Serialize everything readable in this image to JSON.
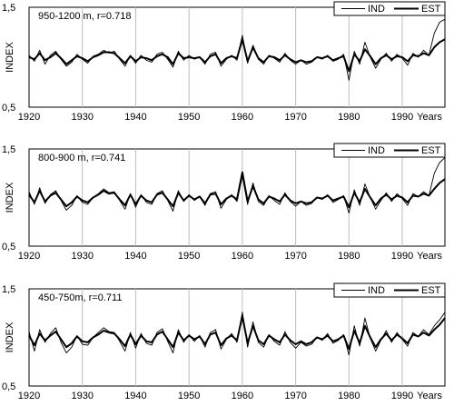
{
  "colors": {
    "ind": "#000000",
    "est": "#000000",
    "grid": "#bdbdbd",
    "axis": "#000000"
  },
  "chart_data": [
    {
      "type": "line",
      "title": "950-1200 m,  r=0.718",
      "ylabel": "INDEX",
      "xlabel": "Years",
      "xlim": [
        1920,
        1998
      ],
      "ylim": [
        0.5,
        1.5
      ],
      "y_ticks": [
        "0,5",
        "1,5"
      ],
      "x_ticks": [
        1920,
        1930,
        1940,
        1950,
        1960,
        1970,
        1980,
        1990
      ],
      "legend": [
        "IND",
        "EST"
      ],
      "legend_position": "top-right",
      "grid": "vertical",
      "x": [
        1920,
        1921,
        1922,
        1923,
        1924,
        1925,
        1926,
        1927,
        1928,
        1929,
        1930,
        1931,
        1932,
        1933,
        1934,
        1935,
        1936,
        1937,
        1938,
        1939,
        1940,
        1941,
        1942,
        1943,
        1944,
        1945,
        1946,
        1947,
        1948,
        1949,
        1950,
        1951,
        1952,
        1953,
        1954,
        1955,
        1956,
        1957,
        1958,
        1959,
        1960,
        1961,
        1962,
        1963,
        1964,
        1965,
        1966,
        1967,
        1968,
        1969,
        1970,
        1971,
        1972,
        1973,
        1974,
        1975,
        1976,
        1977,
        1978,
        1979,
        1980,
        1981,
        1982,
        1983,
        1984,
        1985,
        1986,
        1987,
        1988,
        1989,
        1990,
        1991,
        1992,
        1993,
        1994,
        1995,
        1996,
        1997,
        1998
      ],
      "series": [
        {
          "name": "IND",
          "values": [
            1.02,
            0.96,
            1.07,
            0.93,
            1.02,
            1.06,
            0.98,
            0.91,
            0.95,
            1.03,
            0.98,
            0.94,
            1.01,
            1.03,
            1.07,
            1.04,
            1.06,
            0.98,
            0.91,
            1.02,
            0.94,
            1.02,
            0.97,
            0.95,
            1.03,
            1.05,
            0.98,
            0.9,
            1.06,
            0.97,
            1.02,
            0.98,
            1.0,
            0.93,
            1.03,
            1.05,
            0.91,
            0.98,
            1.02,
            0.97,
            1.22,
            0.94,
            1.12,
            0.98,
            0.93,
            1.02,
            0.99,
            0.95,
            1.04,
            0.97,
            0.93,
            0.97,
            0.93,
            0.95,
            1.0,
            0.98,
            1.02,
            0.96,
            0.98,
            1.03,
            0.77,
            1.06,
            0.93,
            1.15,
            1.0,
            0.89,
            0.98,
            1.04,
            0.96,
            1.03,
            0.99,
            0.92,
            1.04,
            1.0,
            1.07,
            1.02,
            1.24,
            1.35,
            1.38
          ]
        },
        {
          "name": "EST",
          "values": [
            1.0,
            0.98,
            1.04,
            0.97,
            1.0,
            1.04,
            0.99,
            0.93,
            0.97,
            1.01,
            0.99,
            0.96,
            1.0,
            1.02,
            1.05,
            1.05,
            1.04,
            0.99,
            0.94,
            1.01,
            0.96,
            1.0,
            0.99,
            0.97,
            1.01,
            1.03,
            1.0,
            0.93,
            1.04,
            0.99,
            1.0,
            0.99,
            1.0,
            0.95,
            1.01,
            1.03,
            0.94,
            0.99,
            1.01,
            0.99,
            1.18,
            0.96,
            1.1,
            0.99,
            0.95,
            1.01,
            1.0,
            0.97,
            1.02,
            0.98,
            0.95,
            0.97,
            0.95,
            0.96,
            1.0,
            0.99,
            1.01,
            0.97,
            0.99,
            1.01,
            0.86,
            1.03,
            0.96,
            1.08,
            1.01,
            0.93,
            0.99,
            1.02,
            0.98,
            1.01,
            1.0,
            0.96,
            1.02,
            1.01,
            1.04,
            1.02,
            1.1,
            1.15,
            1.18
          ]
        }
      ]
    },
    {
      "type": "line",
      "title": "800-900 m,  r=0.741",
      "ylabel": "INDEX",
      "xlabel": "Years",
      "xlim": [
        1920,
        1998
      ],
      "ylim": [
        0.5,
        1.5
      ],
      "y_ticks": [
        "0,5",
        "1,5"
      ],
      "x_ticks": [
        1920,
        1930,
        1940,
        1950,
        1960,
        1970,
        1980,
        1990
      ],
      "legend": [
        "IND",
        "EST"
      ],
      "legend_position": "top-right",
      "grid": "vertical",
      "x": [
        1920,
        1921,
        1922,
        1923,
        1924,
        1925,
        1926,
        1927,
        1928,
        1929,
        1930,
        1931,
        1932,
        1933,
        1934,
        1935,
        1936,
        1937,
        1938,
        1939,
        1940,
        1941,
        1942,
        1943,
        1944,
        1945,
        1946,
        1947,
        1948,
        1949,
        1950,
        1951,
        1952,
        1953,
        1954,
        1955,
        1956,
        1957,
        1958,
        1959,
        1960,
        1961,
        1962,
        1963,
        1964,
        1965,
        1966,
        1967,
        1968,
        1969,
        1970,
        1971,
        1972,
        1973,
        1974,
        1975,
        1976,
        1977,
        1978,
        1979,
        1980,
        1981,
        1982,
        1983,
        1984,
        1985,
        1986,
        1987,
        1988,
        1989,
        1990,
        1991,
        1992,
        1993,
        1994,
        1995,
        1996,
        1997,
        1998
      ],
      "series": [
        {
          "name": "IND",
          "values": [
            1.06,
            0.93,
            1.1,
            0.94,
            1.03,
            1.07,
            0.97,
            0.87,
            0.92,
            1.02,
            0.95,
            0.93,
            1.0,
            1.04,
            1.09,
            1.05,
            1.06,
            0.97,
            0.88,
            1.04,
            0.9,
            1.03,
            0.95,
            0.93,
            1.04,
            1.07,
            0.97,
            0.86,
            1.07,
            0.96,
            1.03,
            0.97,
            1.01,
            0.92,
            1.04,
            1.06,
            0.89,
            0.98,
            1.03,
            0.96,
            1.22,
            0.93,
            1.15,
            0.96,
            0.92,
            1.02,
            0.97,
            0.93,
            1.05,
            0.96,
            0.91,
            0.96,
            0.92,
            0.94,
            1.0,
            0.98,
            1.03,
            0.95,
            0.98,
            1.02,
            0.84,
            1.08,
            0.92,
            1.14,
            1.0,
            0.88,
            0.97,
            1.05,
            0.96,
            1.04,
            0.99,
            0.92,
            1.04,
            1.01,
            1.06,
            1.02,
            1.25,
            1.36,
            1.41
          ]
        },
        {
          "name": "EST",
          "values": [
            1.03,
            0.95,
            1.07,
            0.96,
            1.02,
            1.05,
            0.98,
            0.91,
            0.95,
            1.01,
            0.97,
            0.95,
            1.0,
            1.03,
            1.07,
            1.04,
            1.05,
            0.98,
            0.92,
            1.03,
            0.93,
            1.02,
            0.97,
            0.95,
            1.03,
            1.05,
            0.98,
            0.91,
            1.05,
            0.97,
            1.02,
            0.98,
            1.01,
            0.94,
            1.03,
            1.04,
            0.93,
            0.99,
            1.02,
            0.98,
            1.26,
            0.96,
            1.12,
            0.98,
            0.94,
            1.01,
            0.99,
            0.96,
            1.03,
            0.97,
            0.94,
            0.96,
            0.94,
            0.95,
            1.0,
            0.99,
            1.02,
            0.97,
            0.99,
            1.01,
            0.9,
            1.05,
            0.95,
            1.09,
            1.0,
            0.92,
            0.99,
            1.03,
            0.98,
            1.02,
            1.0,
            0.95,
            1.02,
            1.01,
            1.04,
            1.02,
            1.09,
            1.15,
            1.19
          ]
        }
      ]
    },
    {
      "type": "line",
      "title": "450-750m,  r=0.711",
      "ylabel": "INDEX",
      "xlabel": "Years",
      "xlim": [
        1920,
        1998
      ],
      "ylim": [
        0.5,
        1.5
      ],
      "y_ticks": [
        "0,5",
        "1,5"
      ],
      "x_ticks": [
        1920,
        1930,
        1940,
        1950,
        1960,
        1970,
        1980,
        1990
      ],
      "legend": [
        "IND",
        "EST"
      ],
      "legend_position": "top-right",
      "grid": "vertical",
      "x": [
        1920,
        1921,
        1922,
        1923,
        1924,
        1925,
        1926,
        1927,
        1928,
        1929,
        1930,
        1931,
        1932,
        1933,
        1934,
        1935,
        1936,
        1937,
        1938,
        1939,
        1940,
        1941,
        1942,
        1943,
        1944,
        1945,
        1946,
        1947,
        1948,
        1949,
        1950,
        1951,
        1952,
        1953,
        1954,
        1955,
        1956,
        1957,
        1958,
        1959,
        1960,
        1961,
        1962,
        1963,
        1964,
        1965,
        1966,
        1967,
        1968,
        1969,
        1970,
        1971,
        1972,
        1973,
        1974,
        1975,
        1976,
        1977,
        1978,
        1979,
        1980,
        1981,
        1982,
        1983,
        1984,
        1985,
        1986,
        1987,
        1988,
        1989,
        1990,
        1991,
        1992,
        1993,
        1994,
        1995,
        1996,
        1997,
        1998
      ],
      "series": [
        {
          "name": "IND",
          "values": [
            1.06,
            0.86,
            1.08,
            0.95,
            1.04,
            1.1,
            0.95,
            0.84,
            0.9,
            1.02,
            0.93,
            0.92,
            1.0,
            1.05,
            1.1,
            1.06,
            1.05,
            0.96,
            0.86,
            1.05,
            0.89,
            1.04,
            0.94,
            0.92,
            1.05,
            1.09,
            0.96,
            0.84,
            1.08,
            0.95,
            1.03,
            0.96,
            1.02,
            0.9,
            1.05,
            1.08,
            0.88,
            0.98,
            1.04,
            0.95,
            1.26,
            0.9,
            1.16,
            0.95,
            0.9,
            1.03,
            0.96,
            0.92,
            1.06,
            0.95,
            0.89,
            0.95,
            0.91,
            0.93,
            1.0,
            0.97,
            1.04,
            0.94,
            0.97,
            1.03,
            0.82,
            1.12,
            0.91,
            1.2,
            0.99,
            0.86,
            0.97,
            1.07,
            0.95,
            1.05,
            0.98,
            0.91,
            1.05,
            1.01,
            1.08,
            1.03,
            1.12,
            1.18,
            1.26
          ]
        },
        {
          "name": "EST",
          "values": [
            1.02,
            0.92,
            1.04,
            0.97,
            1.02,
            1.06,
            0.98,
            0.9,
            0.94,
            1.01,
            0.96,
            0.95,
            1.0,
            1.03,
            1.07,
            1.05,
            1.04,
            0.98,
            0.91,
            1.03,
            0.93,
            1.02,
            0.96,
            0.95,
            1.03,
            1.06,
            0.98,
            0.9,
            1.05,
            0.97,
            1.02,
            0.98,
            1.01,
            0.93,
            1.03,
            1.05,
            0.92,
            0.99,
            1.02,
            0.97,
            1.22,
            0.94,
            1.12,
            0.97,
            0.93,
            1.02,
            0.98,
            0.95,
            1.03,
            0.97,
            0.93,
            0.96,
            0.93,
            0.95,
            1.0,
            0.98,
            1.02,
            0.96,
            0.98,
            1.02,
            0.88,
            1.07,
            0.94,
            1.12,
            1.0,
            0.9,
            0.98,
            1.04,
            0.97,
            1.03,
            0.99,
            0.94,
            1.03,
            1.01,
            1.05,
            1.02,
            1.08,
            1.13,
            1.2
          ]
        }
      ]
    }
  ]
}
